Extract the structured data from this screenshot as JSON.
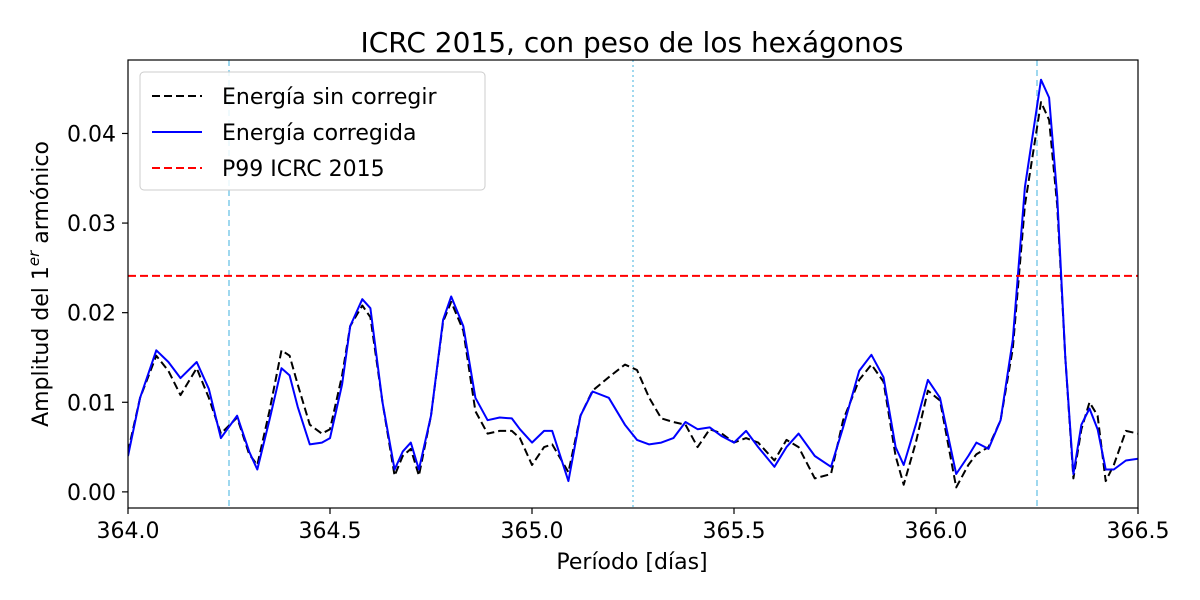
{
  "chart_data": {
    "type": "line",
    "title": "ICRC 2015, con peso de los hexágonos",
    "xlabel": "Período [días]",
    "ylabel": {
      "prefix": "Amplitud del 1",
      "superscript": "er",
      "suffix": " armónico"
    },
    "xlim": [
      364.0,
      366.5
    ],
    "ylim": [
      -0.0018,
      0.0482
    ],
    "xticks": [
      364.0,
      364.5,
      365.0,
      365.5,
      366.0,
      366.5
    ],
    "xtick_labels": [
      "364.0",
      "364.5",
      "365.0",
      "365.5",
      "366.0",
      "366.5"
    ],
    "yticks": [
      0.0,
      0.01,
      0.02,
      0.03,
      0.04
    ],
    "ytick_labels": [
      "0.00",
      "0.01",
      "0.02",
      "0.03",
      "0.04"
    ],
    "grid": false,
    "legend_position": "top-left",
    "vlines": [
      {
        "x": 364.25,
        "style": "dashed",
        "color": "#87ceeb"
      },
      {
        "x": 365.25,
        "style": "dotted",
        "color": "#87ceeb"
      },
      {
        "x": 366.25,
        "style": "dashed",
        "color": "#87ceeb"
      }
    ],
    "series": [
      {
        "name": "Energía sin corregir",
        "color": "#000000",
        "style": "dashed",
        "points": [
          [
            364.0,
            0.0045
          ],
          [
            364.03,
            0.0105
          ],
          [
            364.07,
            0.0152
          ],
          [
            364.1,
            0.0135
          ],
          [
            364.13,
            0.0108
          ],
          [
            364.17,
            0.0138
          ],
          [
            364.2,
            0.0105
          ],
          [
            364.23,
            0.0065
          ],
          [
            364.27,
            0.0083
          ],
          [
            364.3,
            0.0042
          ],
          [
            364.32,
            0.003
          ],
          [
            364.35,
            0.009
          ],
          [
            364.38,
            0.0158
          ],
          [
            364.4,
            0.0152
          ],
          [
            364.42,
            0.012
          ],
          [
            364.45,
            0.0075
          ],
          [
            364.48,
            0.0065
          ],
          [
            364.5,
            0.007
          ],
          [
            364.53,
            0.013
          ],
          [
            364.55,
            0.0185
          ],
          [
            364.58,
            0.0208
          ],
          [
            364.6,
            0.0195
          ],
          [
            364.63,
            0.01
          ],
          [
            364.66,
            0.0018
          ],
          [
            364.68,
            0.004
          ],
          [
            364.7,
            0.0048
          ],
          [
            364.72,
            0.0018
          ],
          [
            364.75,
            0.0085
          ],
          [
            364.78,
            0.019
          ],
          [
            364.8,
            0.0212
          ],
          [
            364.83,
            0.018
          ],
          [
            364.86,
            0.009
          ],
          [
            364.89,
            0.0065
          ],
          [
            364.92,
            0.0068
          ],
          [
            364.95,
            0.0068
          ],
          [
            364.97,
            0.006
          ],
          [
            365.0,
            0.003
          ],
          [
            365.03,
            0.005
          ],
          [
            365.05,
            0.0053
          ],
          [
            365.09,
            0.0022
          ],
          [
            365.12,
            0.0085
          ],
          [
            365.15,
            0.0113
          ],
          [
            365.19,
            0.0128
          ],
          [
            365.23,
            0.0142
          ],
          [
            365.26,
            0.0136
          ],
          [
            365.29,
            0.0105
          ],
          [
            365.32,
            0.0082
          ],
          [
            365.35,
            0.0078
          ],
          [
            365.38,
            0.0075
          ],
          [
            365.41,
            0.005
          ],
          [
            365.44,
            0.007
          ],
          [
            365.47,
            0.0065
          ],
          [
            365.5,
            0.0055
          ],
          [
            365.53,
            0.006
          ],
          [
            365.56,
            0.0055
          ],
          [
            365.6,
            0.0035
          ],
          [
            365.63,
            0.0058
          ],
          [
            365.66,
            0.005
          ],
          [
            365.7,
            0.0015
          ],
          [
            365.74,
            0.002
          ],
          [
            365.77,
            0.008
          ],
          [
            365.81,
            0.0125
          ],
          [
            365.84,
            0.0142
          ],
          [
            365.87,
            0.0123
          ],
          [
            365.9,
            0.004
          ],
          [
            365.92,
            0.0008
          ],
          [
            365.95,
            0.0055
          ],
          [
            365.98,
            0.0113
          ],
          [
            366.01,
            0.0102
          ],
          [
            366.05,
            0.0005
          ],
          [
            366.08,
            0.003
          ],
          [
            366.1,
            0.0042
          ],
          [
            366.13,
            0.005
          ],
          [
            366.16,
            0.008
          ],
          [
            366.19,
            0.016
          ],
          [
            366.22,
            0.032
          ],
          [
            366.26,
            0.0435
          ],
          [
            366.28,
            0.0415
          ],
          [
            366.3,
            0.032
          ],
          [
            366.32,
            0.015
          ],
          [
            366.34,
            0.0015
          ],
          [
            366.36,
            0.007
          ],
          [
            366.38,
            0.01
          ],
          [
            366.4,
            0.0085
          ],
          [
            366.42,
            0.0012
          ],
          [
            366.44,
            0.003
          ],
          [
            366.47,
            0.0068
          ],
          [
            366.5,
            0.0065
          ]
        ]
      },
      {
        "name": "Energía corregida",
        "color": "#0000ff",
        "style": "solid",
        "points": [
          [
            364.0,
            0.004
          ],
          [
            364.03,
            0.0105
          ],
          [
            364.07,
            0.0158
          ],
          [
            364.1,
            0.0145
          ],
          [
            364.13,
            0.0127
          ],
          [
            364.17,
            0.0145
          ],
          [
            364.2,
            0.0115
          ],
          [
            364.23,
            0.006
          ],
          [
            364.27,
            0.0085
          ],
          [
            364.3,
            0.0045
          ],
          [
            364.32,
            0.0025
          ],
          [
            364.35,
            0.008
          ],
          [
            364.38,
            0.0138
          ],
          [
            364.4,
            0.013
          ],
          [
            364.42,
            0.0095
          ],
          [
            364.45,
            0.0053
          ],
          [
            364.48,
            0.0055
          ],
          [
            364.5,
            0.006
          ],
          [
            364.53,
            0.012
          ],
          [
            364.55,
            0.0185
          ],
          [
            364.58,
            0.0215
          ],
          [
            364.6,
            0.0205
          ],
          [
            364.63,
            0.01
          ],
          [
            364.66,
            0.0025
          ],
          [
            364.68,
            0.0045
          ],
          [
            364.7,
            0.0055
          ],
          [
            364.72,
            0.0025
          ],
          [
            364.75,
            0.0085
          ],
          [
            364.78,
            0.0192
          ],
          [
            364.8,
            0.0218
          ],
          [
            364.83,
            0.0185
          ],
          [
            364.86,
            0.0105
          ],
          [
            364.89,
            0.008
          ],
          [
            364.92,
            0.0083
          ],
          [
            364.95,
            0.0082
          ],
          [
            364.97,
            0.007
          ],
          [
            365.0,
            0.0055
          ],
          [
            365.03,
            0.0068
          ],
          [
            365.05,
            0.0068
          ],
          [
            365.09,
            0.0012
          ],
          [
            365.12,
            0.0085
          ],
          [
            365.15,
            0.0112
          ],
          [
            365.19,
            0.0105
          ],
          [
            365.23,
            0.0075
          ],
          [
            365.26,
            0.0058
          ],
          [
            365.29,
            0.0053
          ],
          [
            365.32,
            0.0055
          ],
          [
            365.35,
            0.006
          ],
          [
            365.38,
            0.0078
          ],
          [
            365.41,
            0.007
          ],
          [
            365.44,
            0.0072
          ],
          [
            365.47,
            0.0062
          ],
          [
            365.5,
            0.0055
          ],
          [
            365.53,
            0.0068
          ],
          [
            365.56,
            0.005
          ],
          [
            365.6,
            0.0028
          ],
          [
            365.63,
            0.005
          ],
          [
            365.66,
            0.0065
          ],
          [
            365.7,
            0.004
          ],
          [
            365.74,
            0.0028
          ],
          [
            365.77,
            0.0072
          ],
          [
            365.81,
            0.0135
          ],
          [
            365.84,
            0.0153
          ],
          [
            365.87,
            0.0128
          ],
          [
            365.9,
            0.005
          ],
          [
            365.92,
            0.003
          ],
          [
            365.95,
            0.0075
          ],
          [
            365.98,
            0.0125
          ],
          [
            366.01,
            0.0105
          ],
          [
            366.05,
            0.002
          ],
          [
            366.08,
            0.004
          ],
          [
            366.1,
            0.0055
          ],
          [
            366.13,
            0.0048
          ],
          [
            366.16,
            0.008
          ],
          [
            366.19,
            0.017
          ],
          [
            366.22,
            0.034
          ],
          [
            366.26,
            0.046
          ],
          [
            366.28,
            0.044
          ],
          [
            366.3,
            0.033
          ],
          [
            366.32,
            0.015
          ],
          [
            366.34,
            0.002
          ],
          [
            366.36,
            0.0075
          ],
          [
            366.38,
            0.0093
          ],
          [
            366.4,
            0.007
          ],
          [
            366.42,
            0.0025
          ],
          [
            366.44,
            0.0025
          ],
          [
            366.47,
            0.0035
          ],
          [
            366.5,
            0.0037
          ]
        ]
      },
      {
        "name": "P99 ICRC 2015",
        "color": "#ff0000",
        "style": "dashed",
        "hline": 0.0241
      }
    ]
  }
}
